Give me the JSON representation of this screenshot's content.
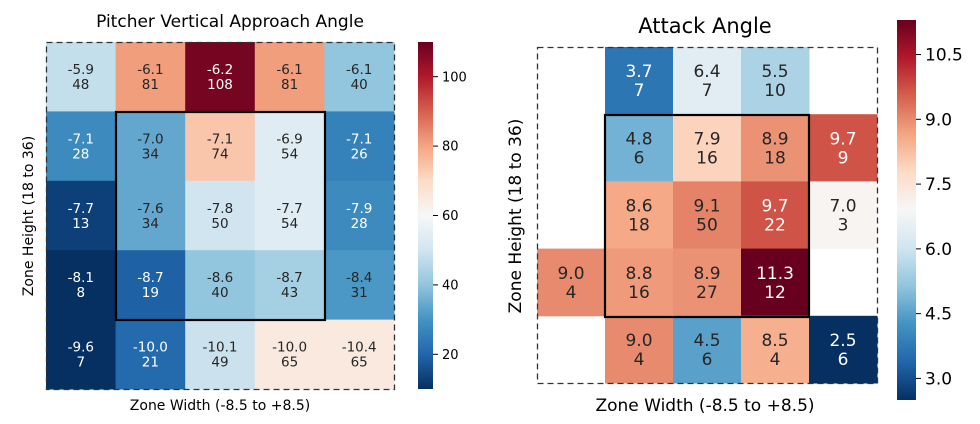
{
  "chart_data": [
    {
      "type": "heatmap",
      "title": "Pitcher Vertical Approach Angle",
      "xlabel": "Zone Width (-8.5 to +8.5)",
      "ylabel": "Zone Height (18 to 36)",
      "colormap": "RdBu_r",
      "color_range": [
        10,
        110
      ],
      "colorbar_ticks": [
        "20",
        "40",
        "60",
        "80",
        "100"
      ],
      "colorbar_tick_values": [
        20,
        40,
        60,
        80,
        100
      ],
      "strike_zone_box": "inner 3x3 cells outlined",
      "grid": [
        [
          {
            "angle": "-5.9",
            "count": 48
          },
          {
            "angle": "-6.1",
            "count": 81
          },
          {
            "angle": "-6.2",
            "count": 108
          },
          {
            "angle": "-6.1",
            "count": 81
          },
          {
            "angle": "-6.1",
            "count": 40
          }
        ],
        [
          {
            "angle": "-7.1",
            "count": 28
          },
          {
            "angle": "-7.0",
            "count": 34
          },
          {
            "angle": "-7.1",
            "count": 74
          },
          {
            "angle": "-6.9",
            "count": 54
          },
          {
            "angle": "-7.1",
            "count": 26
          }
        ],
        [
          {
            "angle": "-7.7",
            "count": 13
          },
          {
            "angle": "-7.6",
            "count": 34
          },
          {
            "angle": "-7.8",
            "count": 50
          },
          {
            "angle": "-7.7",
            "count": 54
          },
          {
            "angle": "-7.9",
            "count": 28
          }
        ],
        [
          {
            "angle": "-8.1",
            "count": 8
          },
          {
            "angle": "-8.7",
            "count": 19
          },
          {
            "angle": "-8.6",
            "count": 40
          },
          {
            "angle": "-8.7",
            "count": 43
          },
          {
            "angle": "-8.4",
            "count": 31
          }
        ],
        [
          {
            "angle": "-9.6",
            "count": 7
          },
          {
            "angle": "-10.0",
            "count": 21
          },
          {
            "angle": "-10.1",
            "count": 49
          },
          {
            "angle": "-10.0",
            "count": 65
          },
          {
            "angle": "-10.4",
            "count": 65
          }
        ]
      ]
    },
    {
      "type": "heatmap",
      "title": "Attack Angle",
      "xlabel": "Zone Width (-8.5 to +8.5)",
      "ylabel": "Zone Height (18 to 36)",
      "colormap": "RdBu_r",
      "color_range": [
        2.5,
        11.3
      ],
      "colorbar_ticks": [
        "3.0",
        "4.5",
        "6.0",
        "7.5",
        "9.0",
        "10.5"
      ],
      "colorbar_tick_values": [
        3.0,
        4.5,
        6.0,
        7.5,
        9.0,
        10.5
      ],
      "strike_zone_box": "inner 3x3 cells outlined",
      "grid": [
        [
          null,
          {
            "angle": "3.7",
            "count": 7
          },
          {
            "angle": "6.4",
            "count": 7
          },
          {
            "angle": "5.5",
            "count": 10
          },
          null
        ],
        [
          null,
          {
            "angle": "4.8",
            "count": 6
          },
          {
            "angle": "7.9",
            "count": 16
          },
          {
            "angle": "8.9",
            "count": 18
          },
          {
            "angle": "9.7",
            "count": 9
          }
        ],
        [
          null,
          {
            "angle": "8.6",
            "count": 18
          },
          {
            "angle": "9.1",
            "count": 50
          },
          {
            "angle": "9.7",
            "count": 22
          },
          {
            "angle": "7.0",
            "count": 3
          }
        ],
        [
          {
            "angle": "9.0",
            "count": 4
          },
          {
            "angle": "8.8",
            "count": 16
          },
          {
            "angle": "8.9",
            "count": 27
          },
          {
            "angle": "11.3",
            "count": 12
          },
          null
        ],
        [
          null,
          {
            "angle": "9.0",
            "count": 4
          },
          {
            "angle": "4.5",
            "count": 6
          },
          {
            "angle": "8.5",
            "count": 4
          },
          {
            "angle": "2.5",
            "count": 6
          }
        ]
      ]
    }
  ]
}
